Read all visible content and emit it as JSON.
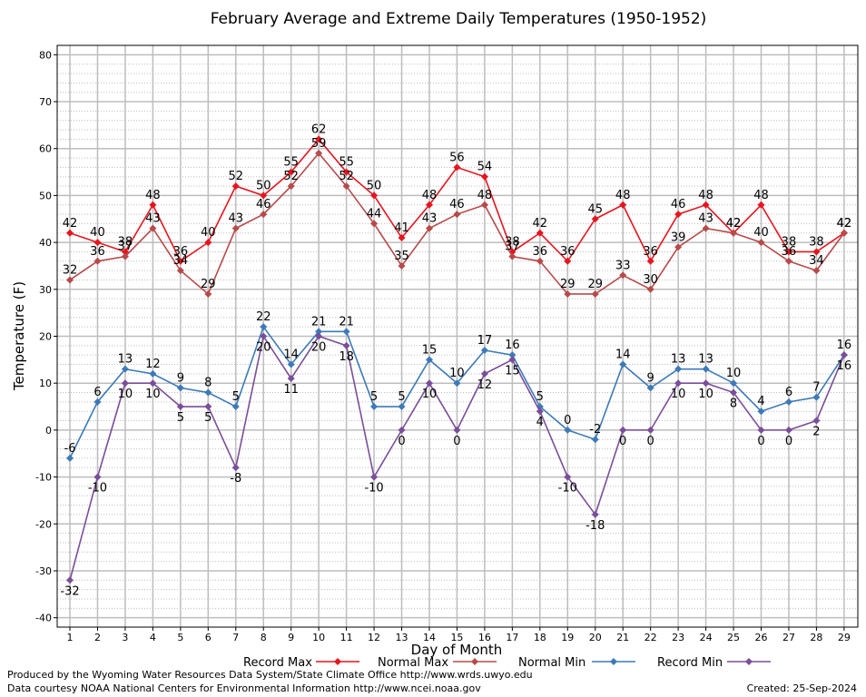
{
  "chart_data": {
    "type": "line",
    "title": "February Average and Extreme Daily Temperatures (1950-1952)",
    "xlabel": "Day of Month",
    "ylabel": "Temperature (F)",
    "ylim": [
      -42,
      82
    ],
    "yticks": [
      -40,
      -30,
      -20,
      -10,
      0,
      10,
      20,
      30,
      40,
      50,
      60,
      70,
      80
    ],
    "grid": true,
    "legend_position": "bottom",
    "x": [
      "1",
      "2",
      "3",
      "4",
      "5",
      "6",
      "7",
      "8",
      "9",
      "10",
      "11",
      "12",
      "13",
      "14",
      "15",
      "16",
      "17",
      "18",
      "19",
      "20",
      "21",
      "22",
      "23",
      "24",
      "25",
      "26",
      "27",
      "28",
      "29"
    ],
    "series": [
      {
        "name": "Record Max",
        "color": "#e8141e",
        "label_position": "above",
        "values": [
          42,
          40,
          38,
          48,
          36,
          40,
          52,
          50,
          55,
          62,
          55,
          50,
          41,
          48,
          56,
          54,
          38,
          42,
          36,
          45,
          48,
          36,
          46,
          48,
          42,
          48,
          38,
          38,
          42
        ]
      },
      {
        "name": "Normal Max",
        "color": "#b84a4a",
        "label_position": "above",
        "values": [
          32,
          36,
          37,
          43,
          34,
          29,
          43,
          46,
          52,
          59,
          52,
          44,
          35,
          43,
          46,
          48,
          37,
          36,
          29,
          29,
          33,
          30,
          39,
          43,
          42,
          40,
          36,
          34,
          42
        ]
      },
      {
        "name": "Normal Min",
        "color": "#3d7ab8",
        "label_position": "above",
        "values": [
          -6,
          6,
          13,
          12,
          9,
          8,
          5,
          22,
          14,
          21,
          21,
          5,
          5,
          15,
          10,
          17,
          16,
          5,
          0,
          -2,
          14,
          9,
          13,
          13,
          10,
          4,
          6,
          7,
          16
        ]
      },
      {
        "name": "Record Min",
        "color": "#7a4e99",
        "label_position": "below",
        "values": [
          -32,
          -10,
          10,
          10,
          5,
          5,
          -8,
          20,
          11,
          20,
          18,
          -10,
          0,
          10,
          0,
          12,
          15,
          4,
          -10,
          -18,
          0,
          0,
          10,
          10,
          8,
          0,
          0,
          2,
          16
        ]
      }
    ]
  },
  "footer": {
    "line1": "Produced by the Wyoming Water Resources Data System/State Climate Office http://www.wrds.uwyo.edu",
    "line2": "Data courtesy NOAA National Centers for Environmental Information http://www.ncei.noaa.gov",
    "created": "Created:  25-Sep-2024"
  }
}
